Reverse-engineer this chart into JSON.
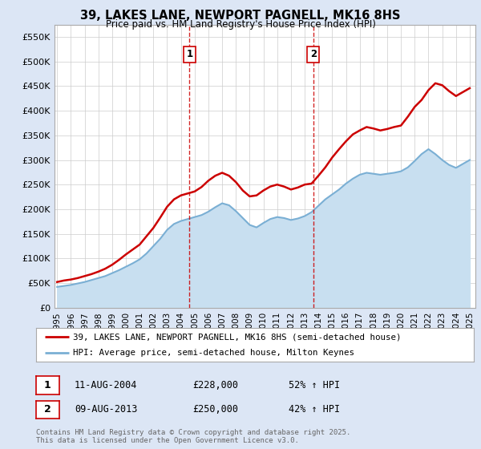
{
  "title": "39, LAKES LANE, NEWPORT PAGNELL, MK16 8HS",
  "subtitle": "Price paid vs. HM Land Registry's House Price Index (HPI)",
  "background_color": "#dce6f5",
  "plot_bg_color": "#ffffff",
  "grid_color": "#cccccc",
  "ylim": [
    0,
    575000
  ],
  "yticks": [
    0,
    50000,
    100000,
    150000,
    200000,
    250000,
    300000,
    350000,
    400000,
    450000,
    500000,
    550000
  ],
  "ytick_labels": [
    "£0",
    "£50K",
    "£100K",
    "£150K",
    "£200K",
    "£250K",
    "£300K",
    "£350K",
    "£400K",
    "£450K",
    "£500K",
    "£550K"
  ],
  "sale1_date": 2004.62,
  "sale1_label": "1",
  "sale2_date": 2013.62,
  "sale2_label": "2",
  "sale1_text": "11-AUG-2004",
  "sale1_amount": "£228,000",
  "sale1_hpi": "52% ↑ HPI",
  "sale2_text": "09-AUG-2013",
  "sale2_amount": "£250,000",
  "sale2_hpi": "42% ↑ HPI",
  "legend_line1": "39, LAKES LANE, NEWPORT PAGNELL, MK16 8HS (semi-detached house)",
  "legend_line2": "HPI: Average price, semi-detached house, Milton Keynes",
  "footer": "Contains HM Land Registry data © Crown copyright and database right 2025.\nThis data is licensed under the Open Government Licence v3.0.",
  "property_color": "#cc0000",
  "hpi_color": "#7aafd4",
  "hpi_fill_color": "#c8dff0",
  "property_data_x": [
    1995.0,
    1995.5,
    1996.0,
    1996.5,
    1997.0,
    1997.5,
    1998.0,
    1998.5,
    1999.0,
    1999.5,
    2000.0,
    2000.5,
    2001.0,
    2001.5,
    2002.0,
    2002.5,
    2003.0,
    2003.5,
    2004.0,
    2004.5,
    2005.0,
    2005.5,
    2006.0,
    2006.5,
    2007.0,
    2007.5,
    2008.0,
    2008.5,
    2009.0,
    2009.5,
    2010.0,
    2010.5,
    2011.0,
    2011.5,
    2012.0,
    2012.5,
    2013.0,
    2013.5,
    2014.0,
    2014.5,
    2015.0,
    2015.5,
    2016.0,
    2016.5,
    2017.0,
    2017.5,
    2018.0,
    2018.5,
    2019.0,
    2019.5,
    2020.0,
    2020.5,
    2021.0,
    2021.5,
    2022.0,
    2022.5,
    2023.0,
    2023.5,
    2024.0,
    2024.5,
    2025.0
  ],
  "property_data_y": [
    52000,
    55000,
    57000,
    60000,
    64000,
    68000,
    73000,
    79000,
    87000,
    97000,
    108000,
    118000,
    128000,
    145000,
    162000,
    183000,
    205000,
    220000,
    228000,
    232000,
    236000,
    245000,
    258000,
    268000,
    274000,
    268000,
    255000,
    238000,
    226000,
    228000,
    238000,
    246000,
    250000,
    246000,
    240000,
    244000,
    250000,
    252000,
    268000,
    285000,
    305000,
    322000,
    338000,
    352000,
    360000,
    367000,
    364000,
    360000,
    363000,
    367000,
    370000,
    388000,
    408000,
    422000,
    442000,
    456000,
    452000,
    440000,
    430000,
    438000,
    446000
  ],
  "hpi_data_x": [
    1995.0,
    1995.5,
    1996.0,
    1996.5,
    1997.0,
    1997.5,
    1998.0,
    1998.5,
    1999.0,
    1999.5,
    2000.0,
    2000.5,
    2001.0,
    2001.5,
    2002.0,
    2002.5,
    2003.0,
    2003.5,
    2004.0,
    2004.5,
    2005.0,
    2005.5,
    2006.0,
    2006.5,
    2007.0,
    2007.5,
    2008.0,
    2008.5,
    2009.0,
    2009.5,
    2010.0,
    2010.5,
    2011.0,
    2011.5,
    2012.0,
    2012.5,
    2013.0,
    2013.5,
    2014.0,
    2014.5,
    2015.0,
    2015.5,
    2016.0,
    2016.5,
    2017.0,
    2017.5,
    2018.0,
    2018.5,
    2019.0,
    2019.5,
    2020.0,
    2020.5,
    2021.0,
    2021.5,
    2022.0,
    2022.5,
    2023.0,
    2023.5,
    2024.0,
    2024.5,
    2025.0
  ],
  "hpi_data_y": [
    42000,
    44000,
    46000,
    49000,
    52000,
    56000,
    60000,
    64000,
    70000,
    76000,
    83000,
    90000,
    98000,
    110000,
    125000,
    140000,
    158000,
    170000,
    176000,
    180000,
    184000,
    188000,
    195000,
    204000,
    212000,
    208000,
    196000,
    182000,
    168000,
    163000,
    172000,
    180000,
    184000,
    182000,
    178000,
    181000,
    186000,
    194000,
    207000,
    220000,
    230000,
    240000,
    252000,
    262000,
    270000,
    274000,
    272000,
    270000,
    272000,
    274000,
    277000,
    285000,
    298000,
    312000,
    322000,
    312000,
    300000,
    290000,
    284000,
    292000,
    300000
  ],
  "xlim_start": 1994.8,
  "xlim_end": 2025.4,
  "xtick_years": [
    1995,
    1996,
    1997,
    1998,
    1999,
    2000,
    2001,
    2002,
    2003,
    2004,
    2005,
    2006,
    2007,
    2008,
    2009,
    2010,
    2011,
    2012,
    2013,
    2014,
    2015,
    2016,
    2017,
    2018,
    2019,
    2020,
    2021,
    2022,
    2023,
    2024,
    2025
  ]
}
